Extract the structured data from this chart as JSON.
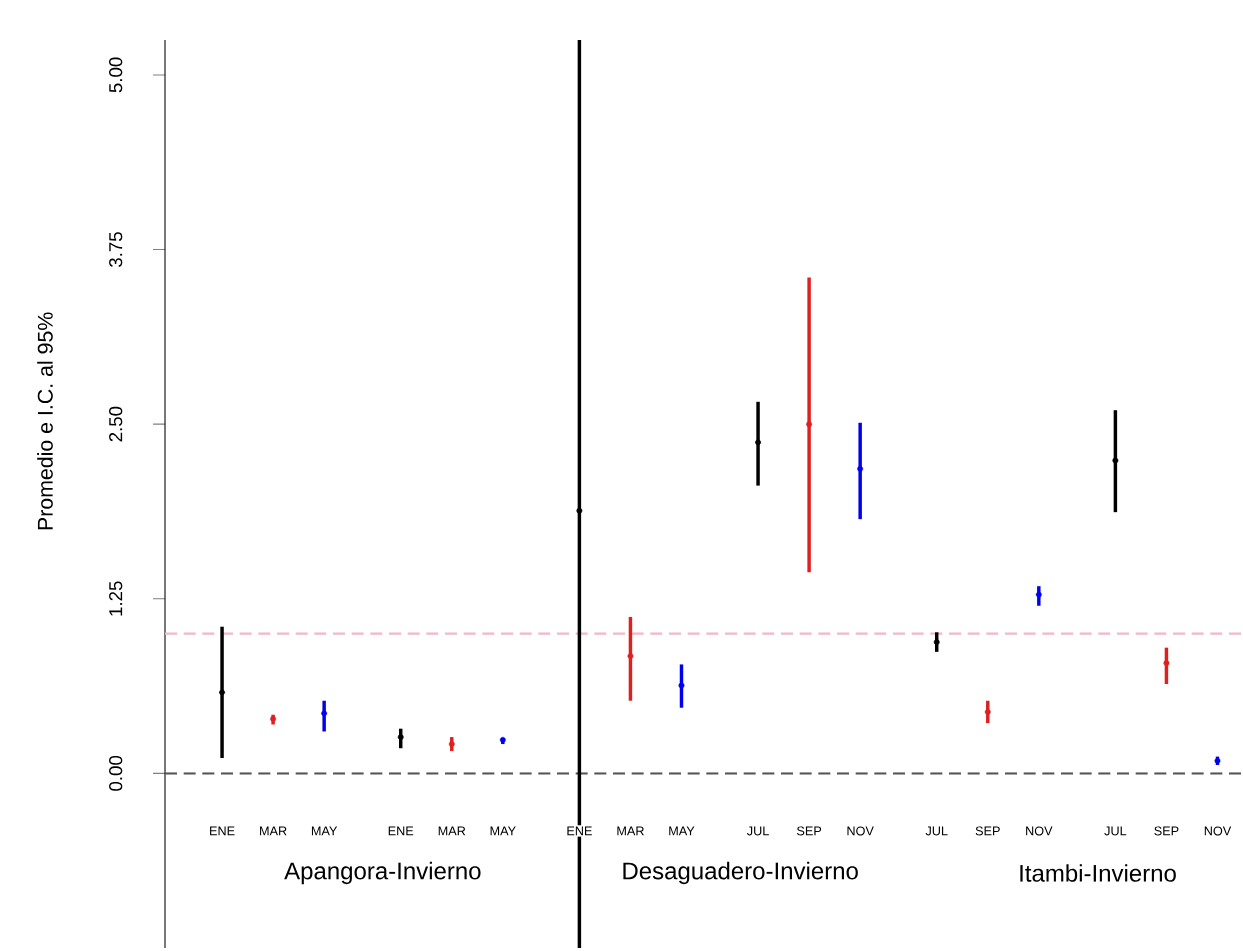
{
  "chart_data": {
    "type": "scatter",
    "ylabel": "Promedio e I.C. al 95%",
    "categories": [
      "ENE",
      "MAR",
      "MAY",
      "ENE",
      "MAR",
      "MAY",
      "ENE",
      "MAR",
      "MAY",
      "JUL",
      "SEP",
      "NOV",
      "JUL",
      "SEP",
      "NOV",
      "JUL",
      "SEP",
      "NOV"
    ],
    "values": [
      0.58,
      0.39,
      0.43,
      0.26,
      0.21,
      0.24,
      1.88,
      0.84,
      0.63,
      2.37,
      2.5,
      2.18,
      0.94,
      0.44,
      1.28,
      2.24,
      0.79,
      0.09
    ],
    "errors": [
      [
        0.11,
        1.05
      ],
      [
        0.35,
        0.42
      ],
      [
        0.3,
        0.52
      ],
      [
        0.18,
        0.32
      ],
      [
        0.16,
        0.26
      ],
      [
        0.21,
        0.25
      ],
      [
        -1.25,
        5.25
      ],
      [
        0.52,
        1.12
      ],
      [
        0.47,
        0.78
      ],
      [
        2.06,
        2.66
      ],
      [
        1.44,
        3.55
      ],
      [
        1.82,
        2.51
      ],
      [
        0.87,
        1.01
      ],
      [
        0.36,
        0.52
      ],
      [
        1.2,
        1.34
      ],
      [
        1.87,
        2.6
      ],
      [
        0.64,
        0.9
      ],
      [
        0.06,
        0.12
      ]
    ],
    "colors": [
      "#000000",
      "#e02020",
      "#0000ee",
      "#000000",
      "#e02020",
      "#0000ee",
      "#000000",
      "#e02020",
      "#0000ee",
      "#000000",
      "#e02020",
      "#0000ee",
      "#000000",
      "#e02020",
      "#0000ee",
      "#000000",
      "#e02020",
      "#0000ee"
    ],
    "ylim": [
      -1.25,
      5.25
    ],
    "yticks": [
      {
        "value": 0,
        "label": "0.00"
      },
      {
        "value": 1.25,
        "label": "1.25"
      },
      {
        "value": 2.5,
        "label": "2.50"
      },
      {
        "value": 3.75,
        "label": "3.75"
      },
      {
        "value": 5,
        "label": "5.00"
      }
    ],
    "ref_lines": [
      {
        "axis": "y",
        "value": 0,
        "color": "#555555",
        "line_style": "dashed"
      },
      {
        "axis": "y",
        "value": 1.0,
        "color": "#f2b8c6",
        "line_style": "dashed"
      }
    ],
    "annotations": [
      "Apangora-Invierno",
      "Desaguadero-Invierno",
      "Itambi-Invierno"
    ],
    "marker": "circle"
  }
}
